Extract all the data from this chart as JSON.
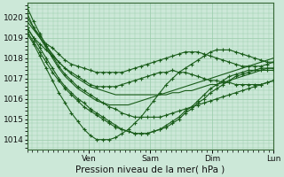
{
  "xlabel": "Pression niveau de la mer( hPa )",
  "bg_color": "#cce8d8",
  "grid_color": "#99ccaa",
  "line_color": "#1a5c1a",
  "ylim": [
    1013.5,
    1020.7
  ],
  "yticks": [
    1014,
    1015,
    1016,
    1017,
    1018,
    1019,
    1020
  ],
  "x_tick_labels": [
    "Ven",
    "Sam",
    "Dim",
    "Lun"
  ],
  "x_tick_positions": [
    0.25,
    0.5,
    0.75,
    1.0
  ],
  "lines": [
    {
      "y": [
        1020.2,
        1019.5,
        1019.1,
        1018.7,
        1018.5,
        1018.2,
        1017.9,
        1017.7,
        1017.6,
        1017.5,
        1017.4,
        1017.3,
        1017.3,
        1017.3,
        1017.3,
        1017.3,
        1017.4,
        1017.5,
        1017.6,
        1017.7,
        1017.8,
        1017.9,
        1018.0,
        1018.1,
        1018.2,
        1018.3,
        1018.3,
        1018.3,
        1018.2,
        1018.1,
        1018.0,
        1017.9,
        1017.8,
        1017.7,
        1017.6,
        1017.6,
        1017.6,
        1017.6,
        1017.7,
        1017.8
      ],
      "marker": true
    },
    {
      "y": [
        1019.5,
        1019.0,
        1018.7,
        1018.4,
        1018.1,
        1017.8,
        1017.5,
        1017.3,
        1017.1,
        1016.9,
        1016.7,
        1016.6,
        1016.6,
        1016.6,
        1016.6,
        1016.7,
        1016.8,
        1016.9,
        1017.0,
        1017.1,
        1017.2,
        1017.3,
        1017.3,
        1017.4,
        1017.3,
        1017.3,
        1017.2,
        1017.1,
        1017.0,
        1016.9,
        1016.9,
        1016.8,
        1016.8,
        1016.7,
        1016.7,
        1016.7,
        1016.7,
        1016.7,
        1016.8,
        1016.9
      ],
      "marker": true
    },
    {
      "y": [
        1020.5,
        1019.8,
        1019.2,
        1018.6,
        1018.1,
        1017.6,
        1017.2,
        1016.9,
        1016.6,
        1016.4,
        1016.2,
        1016.0,
        1015.8,
        1015.6,
        1015.5,
        1015.3,
        1015.2,
        1015.1,
        1015.1,
        1015.1,
        1015.1,
        1015.1,
        1015.2,
        1015.3,
        1015.4,
        1015.5,
        1015.6,
        1015.7,
        1015.8,
        1015.9,
        1016.0,
        1016.1,
        1016.2,
        1016.3,
        1016.4,
        1016.5,
        1016.6,
        1016.7,
        1016.8,
        1016.9
      ],
      "marker": true
    },
    {
      "y": [
        1019.8,
        1019.4,
        1019.0,
        1018.6,
        1018.2,
        1017.8,
        1017.5,
        1017.2,
        1017.0,
        1016.8,
        1016.6,
        1016.5,
        1016.4,
        1016.3,
        1016.2,
        1016.2,
        1016.2,
        1016.2,
        1016.2,
        1016.2,
        1016.2,
        1016.2,
        1016.2,
        1016.3,
        1016.3,
        1016.4,
        1016.4,
        1016.5,
        1016.6,
        1016.7,
        1016.7,
        1016.8,
        1016.9,
        1017.0,
        1017.1,
        1017.2,
        1017.3,
        1017.4,
        1017.5,
        1017.5
      ],
      "marker": false
    },
    {
      "y": [
        1020.0,
        1019.5,
        1019.0,
        1018.5,
        1018.0,
        1017.5,
        1017.1,
        1016.8,
        1016.5,
        1016.3,
        1016.1,
        1015.9,
        1015.8,
        1015.7,
        1015.7,
        1015.7,
        1015.7,
        1015.8,
        1015.9,
        1016.0,
        1016.1,
        1016.2,
        1016.3,
        1016.4,
        1016.5,
        1016.6,
        1016.7,
        1016.8,
        1016.9,
        1017.0,
        1017.1,
        1017.2,
        1017.3,
        1017.4,
        1017.5,
        1017.6,
        1017.7,
        1017.8,
        1017.9,
        1018.0
      ],
      "marker": false
    },
    {
      "y": [
        1019.2,
        1018.7,
        1018.1,
        1017.5,
        1016.9,
        1016.3,
        1015.8,
        1015.3,
        1014.9,
        1014.5,
        1014.2,
        1014.0,
        1014.0,
        1014.0,
        1014.1,
        1014.3,
        1014.5,
        1014.8,
        1015.1,
        1015.5,
        1015.9,
        1016.3,
        1016.7,
        1017.0,
        1017.3,
        1017.5,
        1017.7,
        1017.9,
        1018.1,
        1018.3,
        1018.4,
        1018.4,
        1018.4,
        1018.3,
        1018.2,
        1018.1,
        1018.0,
        1017.9,
        1017.8,
        1017.8
      ],
      "marker": true
    },
    {
      "y": [
        1019.5,
        1019.0,
        1018.5,
        1018.0,
        1017.5,
        1017.0,
        1016.6,
        1016.3,
        1016.0,
        1015.8,
        1015.5,
        1015.3,
        1015.1,
        1014.9,
        1014.7,
        1014.5,
        1014.4,
        1014.3,
        1014.3,
        1014.3,
        1014.4,
        1014.5,
        1014.7,
        1014.9,
        1015.1,
        1015.4,
        1015.6,
        1015.9,
        1016.2,
        1016.5,
        1016.7,
        1016.9,
        1017.1,
        1017.2,
        1017.3,
        1017.4,
        1017.4,
        1017.4,
        1017.4,
        1017.4
      ],
      "marker": true
    },
    {
      "y": [
        1019.3,
        1018.8,
        1018.3,
        1017.8,
        1017.3,
        1016.9,
        1016.5,
        1016.2,
        1015.9,
        1015.6,
        1015.4,
        1015.2,
        1015.0,
        1014.8,
        1014.6,
        1014.5,
        1014.4,
        1014.3,
        1014.3,
        1014.3,
        1014.4,
        1014.5,
        1014.6,
        1014.8,
        1015.0,
        1015.3,
        1015.5,
        1015.8,
        1016.0,
        1016.3,
        1016.5,
        1016.7,
        1016.9,
        1017.1,
        1017.2,
        1017.3,
        1017.4,
        1017.5,
        1017.5,
        1017.5
      ],
      "marker": true
    }
  ]
}
